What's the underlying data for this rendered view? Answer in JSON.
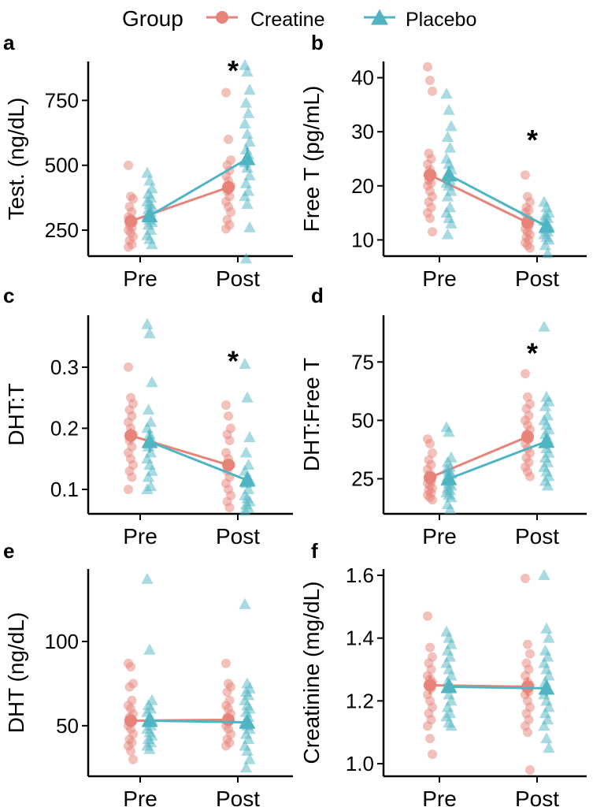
{
  "legend": {
    "title": "Group",
    "items": [
      {
        "name": "Creatine",
        "color": "#E8837A",
        "marker": "circle"
      },
      {
        "name": "Placebo",
        "color": "#4FB5C3",
        "marker": "triangle"
      }
    ]
  },
  "colors": {
    "creatine": "#E8837A",
    "placebo": "#4FB5C3",
    "axis": "#000000"
  },
  "chart_data": [
    {
      "type": "scatter",
      "panel": "a",
      "ylabel": "Test. (ng/dL)",
      "categories": [
        "Pre",
        "Post"
      ],
      "ylim": [
        150,
        900
      ],
      "yticks": [
        250,
        500,
        750
      ],
      "annotation": {
        "text": "*",
        "category": "Post",
        "y": 875
      },
      "series": [
        {
          "name": "Creatine",
          "means": [
            285,
            415
          ],
          "errors": [
            18,
            28
          ],
          "points": [
            [
              500,
              380,
              370,
              340,
              320,
              300,
              290,
              280,
              270,
              260,
              250,
              240,
              225,
              210,
              195,
              185
            ],
            [
              780,
              600,
              520,
              500,
              480,
              460,
              440,
              420,
              400,
              380,
              360,
              340,
              320,
              290,
              270,
              255
            ]
          ]
        },
        {
          "name": "Placebo",
          "means": [
            305,
            525
          ],
          "errors": [
            15,
            45
          ],
          "points": [
            [
              470,
              440,
              410,
              390,
              375,
              360,
              350,
              340,
              330,
              320,
              305,
              290,
              280,
              270,
              250,
              230,
              215,
              195
            ],
            [
              885,
              860,
              790,
              740,
              700,
              660,
              620,
              590,
              560,
              540,
              510,
              490,
              460,
              430,
              400,
              380,
              350,
              260,
              140
            ]
          ]
        }
      ]
    },
    {
      "type": "scatter",
      "panel": "b",
      "ylabel": "Free T (pg/mL)",
      "categories": [
        "Pre",
        "Post"
      ],
      "ylim": [
        7,
        43
      ],
      "yticks": [
        10,
        20,
        30,
        40
      ],
      "annotation": {
        "text": "*",
        "category": "Post",
        "y": 29
      },
      "series": [
        {
          "name": "Creatine",
          "means": [
            22,
            13.2
          ],
          "errors": [
            1.4,
            0.9
          ],
          "points": [
            [
              42,
              39.5,
              37.5,
              26,
              25,
              24,
              23,
              22,
              21,
              20.5,
              20,
              19,
              18,
              17,
              16,
              15,
              14,
              11.5
            ],
            [
              22,
              18,
              17,
              16,
              15.5,
              15,
              14,
              13.5,
              13,
              12.5,
              12,
              11.5,
              11,
              10.5,
              10,
              9.5,
              9,
              8.5
            ]
          ]
        },
        {
          "name": "Placebo",
          "means": [
            22,
            12.5
          ],
          "errors": [
            1.6,
            0.7
          ],
          "points": [
            [
              37,
              34,
              31,
              29,
              27,
              25,
              24,
              23,
              22,
              21,
              20.5,
              20,
              19,
              18,
              16,
              15,
              14,
              13,
              11
            ],
            [
              17,
              16,
              15,
              14.5,
              14,
              13.5,
              13,
              12.5,
              12,
              11.5,
              11,
              10.5,
              10,
              9,
              7.5
            ]
          ]
        }
      ]
    },
    {
      "type": "scatter",
      "panel": "c",
      "ylabel": "DHT:T",
      "categories": [
        "Pre",
        "Post"
      ],
      "ylim": [
        0.06,
        0.385
      ],
      "yticks": [
        0.1,
        0.2,
        0.3
      ],
      "annotation": {
        "text": "*",
        "category": "Post",
        "y": 0.315
      },
      "series": [
        {
          "name": "Creatine",
          "means": [
            0.188,
            0.14
          ],
          "errors": [
            0.012,
            0.01
          ],
          "points": [
            [
              0.3,
              0.25,
              0.24,
              0.23,
              0.22,
              0.21,
              0.2,
              0.19,
              0.18,
              0.17,
              0.16,
              0.15,
              0.14,
              0.13,
              0.12,
              0.1
            ],
            [
              0.238,
              0.22,
              0.2,
              0.19,
              0.18,
              0.16,
              0.15,
              0.14,
              0.13,
              0.12,
              0.11,
              0.1,
              0.09,
              0.08,
              0.07
            ]
          ]
        },
        {
          "name": "Placebo",
          "means": [
            0.178,
            0.115
          ],
          "errors": [
            0.018,
            0.012
          ],
          "points": [
            [
              0.37,
              0.355,
              0.275,
              0.23,
              0.21,
              0.2,
              0.19,
              0.18,
              0.17,
              0.16,
              0.15,
              0.14,
              0.13,
              0.12,
              0.105,
              0.1
            ],
            [
              0.305,
              0.25,
              0.185,
              0.16,
              0.14,
              0.13,
              0.12,
              0.115,
              0.11,
              0.1,
              0.09,
              0.085,
              0.08,
              0.075,
              0.07,
              0.065
            ]
          ]
        }
      ]
    },
    {
      "type": "scatter",
      "panel": "d",
      "ylabel": "DHT:Free T",
      "categories": [
        "Pre",
        "Post"
      ],
      "ylim": [
        10,
        95
      ],
      "yticks": [
        25,
        50,
        75
      ],
      "annotation": {
        "text": "*",
        "category": "Post",
        "y": 80
      },
      "series": [
        {
          "name": "Creatine",
          "means": [
            25.5,
            43
          ],
          "errors": [
            2,
            3
          ],
          "points": [
            [
              42,
              40,
              36,
              33,
              31,
              29,
              27,
              26,
              25,
              24,
              23,
              22,
              21,
              20,
              19,
              18,
              17,
              16
            ],
            [
              70,
              60,
              57,
              55,
              52,
              50,
              48,
              46,
              44,
              42,
              40,
              38,
              36,
              34,
              32,
              30,
              28,
              26
            ]
          ]
        },
        {
          "name": "Placebo",
          "means": [
            25,
            41
          ],
          "errors": [
            2.2,
            3.2
          ],
          "points": [
            [
              47,
              45,
              34,
              32,
              30,
              29,
              28,
              27,
              26,
              25,
              24,
              23,
              22,
              21,
              20,
              19,
              18,
              17,
              14,
              12
            ],
            [
              90,
              60,
              58,
              56,
              52,
              50,
              48,
              46,
              44,
              42,
              40,
              38,
              36,
              34,
              32,
              30,
              28,
              26,
              24,
              22
            ]
          ]
        }
      ]
    },
    {
      "type": "scatter",
      "panel": "e",
      "ylabel": "DHT (ng/dL)",
      "categories": [
        "Pre",
        "Post"
      ],
      "ylim": [
        20,
        143
      ],
      "yticks": [
        50,
        100
      ],
      "annotation": null,
      "series": [
        {
          "name": "Creatine",
          "means": [
            53,
            53.5
          ],
          "errors": [
            3.5,
            3
          ],
          "points": [
            [
              87,
              85,
              75,
              73,
              65,
              62,
              60,
              57,
              55,
              53,
              50,
              48,
              45,
              42,
              40,
              38,
              35,
              30
            ],
            [
              87,
              75,
              73,
              70,
              65,
              62,
              60,
              57,
              55,
              53,
              50,
              48,
              45,
              42,
              40,
              38
            ]
          ]
        },
        {
          "name": "Placebo",
          "means": [
            53,
            52
          ],
          "errors": [
            3.5,
            4
          ],
          "points": [
            [
              137,
              95,
              65,
              62,
              60,
              58,
              55,
              53,
              52,
              50,
              48,
              46,
              44,
              42,
              40,
              38,
              36
            ],
            [
              122,
              75,
              72,
              70,
              68,
              65,
              62,
              60,
              58,
              55,
              52,
              50,
              48,
              45,
              42,
              38,
              35,
              30,
              25
            ]
          ]
        }
      ]
    },
    {
      "type": "scatter",
      "panel": "f",
      "ylabel": "Creatinine (mg/dL)",
      "categories": [
        "Pre",
        "Post"
      ],
      "ylim": [
        0.96,
        1.62
      ],
      "yticks": [
        1.0,
        1.2,
        1.4,
        1.6
      ],
      "annotation": null,
      "series": [
        {
          "name": "Creatine",
          "means": [
            1.25,
            1.245
          ],
          "errors": [
            0.03,
            0.03
          ],
          "points": [
            [
              1.47,
              1.37,
              1.34,
              1.32,
              1.3,
              1.28,
              1.27,
              1.26,
              1.25,
              1.24,
              1.22,
              1.2,
              1.18,
              1.16,
              1.14,
              1.12,
              1.08,
              1.03
            ],
            [
              1.59,
              1.38,
              1.35,
              1.32,
              1.3,
              1.28,
              1.26,
              1.25,
              1.24,
              1.23,
              1.22,
              1.2,
              1.18,
              1.16,
              1.14,
              1.12,
              1.1,
              0.98
            ]
          ]
        },
        {
          "name": "Placebo",
          "means": [
            1.245,
            1.24
          ],
          "errors": [
            0.02,
            0.025
          ],
          "points": [
            [
              1.42,
              1.4,
              1.38,
              1.36,
              1.34,
              1.32,
              1.3,
              1.28,
              1.26,
              1.25,
              1.24,
              1.22,
              1.2,
              1.18,
              1.16,
              1.15,
              1.13,
              1.12
            ],
            [
              1.6,
              1.43,
              1.4,
              1.36,
              1.34,
              1.32,
              1.3,
              1.28,
              1.26,
              1.24,
              1.22,
              1.2,
              1.18,
              1.16,
              1.14,
              1.12,
              1.08,
              1.05
            ]
          ]
        }
      ]
    }
  ]
}
